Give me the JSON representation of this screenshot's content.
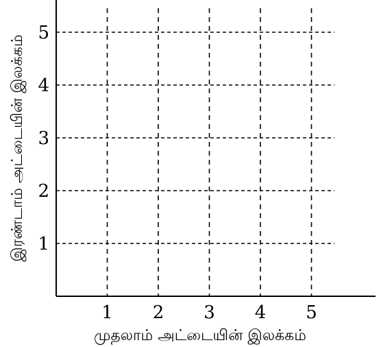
{
  "chart_data": {
    "type": "scatter",
    "title": "",
    "xlabel": "முதலாம் அட்டையின் இலக்கம்",
    "ylabel": "இரண்டாம் அட்டையின் இலக்கம்",
    "x_ticks": [
      "1",
      "2",
      "3",
      "4",
      "5"
    ],
    "y_ticks": [
      "1",
      "2",
      "3",
      "4",
      "5"
    ],
    "xlim": [
      0,
      5.6
    ],
    "ylim": [
      0,
      5.6
    ],
    "grid": true,
    "grid_style": "dashed",
    "series": []
  }
}
